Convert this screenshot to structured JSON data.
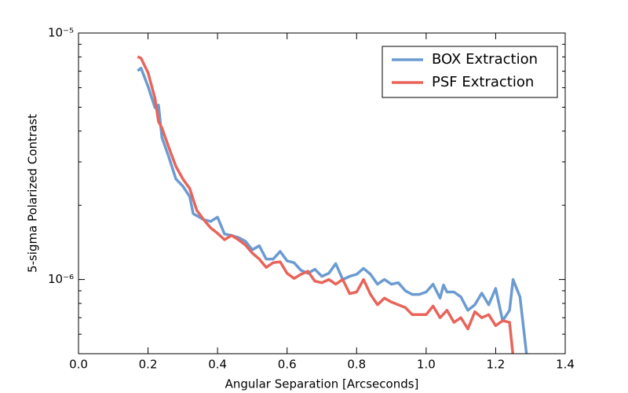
{
  "chart_data": {
    "type": "line",
    "xlabel": "Angular Separation [Arcseconds]",
    "ylabel": "5-sigma Polarized Contrast",
    "xlim": [
      0,
      1.4
    ],
    "xticks": [
      {
        "value": 0,
        "label": "0.0"
      },
      0.2,
      0.4,
      0.6,
      0.8,
      {
        "value": 1,
        "label": "1.0"
      },
      1.2,
      1.4
    ],
    "ylim": [
      5e-07,
      1e-05
    ],
    "yscale": "log",
    "yticks": [
      {
        "value": 1e-06,
        "label": "10⁻⁶"
      },
      {
        "value": 1e-05,
        "label": "10⁻⁵"
      }
    ],
    "yminorticks": [
      6e-07,
      7e-07,
      8e-07,
      9e-07,
      2e-06,
      3e-06,
      4e-06,
      5e-06,
      6e-06,
      7e-06,
      8e-06,
      9e-06
    ],
    "legend": "upper right",
    "series": [
      {
        "name": "BOX Extraction",
        "color": "#6b9bd1",
        "x": [
          0.17,
          0.18,
          0.2,
          0.22,
          0.23,
          0.24,
          0.26,
          0.28,
          0.3,
          0.32,
          0.33,
          0.36,
          0.38,
          0.4,
          0.42,
          0.44,
          0.46,
          0.48,
          0.5,
          0.52,
          0.54,
          0.56,
          0.58,
          0.6,
          0.62,
          0.64,
          0.66,
          0.68,
          0.7,
          0.72,
          0.74,
          0.76,
          0.78,
          0.8,
          0.82,
          0.84,
          0.86,
          0.88,
          0.9,
          0.92,
          0.94,
          0.96,
          0.98,
          1.0,
          1.02,
          1.04,
          1.05,
          1.06,
          1.08,
          1.1,
          1.12,
          1.14,
          1.16,
          1.18,
          1.2,
          1.22,
          1.24,
          1.25,
          1.27,
          1.29
        ],
        "values": [
          7.03e-06,
          7.2e-06,
          6.07e-06,
          4.98e-06,
          5.1e-06,
          3.77e-06,
          3.14e-06,
          2.56e-06,
          2.39e-06,
          2.17e-06,
          1.85e-06,
          1.75e-06,
          1.72e-06,
          1.79e-06,
          1.53e-06,
          1.51e-06,
          1.48e-06,
          1.43e-06,
          1.32e-06,
          1.37e-06,
          1.21e-06,
          1.21e-06,
          1.3e-06,
          1.19e-06,
          1.17e-06,
          1.09e-06,
          1.06e-06,
          1.1e-06,
          1.03e-06,
          1.06e-06,
          1.16e-06,
          1e-06,
          1.03e-06,
          1.05e-06,
          1.11e-06,
          1.05e-06,
          9.57e-07,
          1e-06,
          9.57e-07,
          9.7e-07,
          9e-07,
          8.7e-07,
          8.7e-07,
          8.9e-07,
          9.57e-07,
          8.4e-07,
          9.5e-07,
          8.9e-07,
          8.9e-07,
          8.5e-07,
          7.5e-07,
          7.9e-07,
          8.8e-07,
          7.9e-07,
          9.2e-07,
          6.8e-07,
          7.5e-07,
          1e-06,
          8.5e-07,
          4.8e-07
        ]
      },
      {
        "name": "PSF Extraction",
        "color": "#e8645a",
        "x": [
          0.17,
          0.18,
          0.2,
          0.22,
          0.23,
          0.24,
          0.26,
          0.28,
          0.3,
          0.32,
          0.34,
          0.36,
          0.38,
          0.4,
          0.42,
          0.44,
          0.46,
          0.48,
          0.5,
          0.52,
          0.54,
          0.56,
          0.58,
          0.6,
          0.62,
          0.64,
          0.66,
          0.68,
          0.7,
          0.72,
          0.74,
          0.76,
          0.78,
          0.8,
          0.82,
          0.84,
          0.86,
          0.88,
          0.9,
          0.92,
          0.94,
          0.96,
          0.98,
          1.0,
          1.02,
          1.04,
          1.06,
          1.08,
          1.1,
          1.12,
          1.14,
          1.16,
          1.18,
          1.2,
          1.22,
          1.24,
          1.25
        ],
        "values": [
          8.02e-06,
          7.9e-06,
          6.9e-06,
          5.44e-06,
          4.37e-06,
          4.12e-06,
          3.43e-06,
          2.88e-06,
          2.56e-06,
          2.34e-06,
          1.91e-06,
          1.75e-06,
          1.62e-06,
          1.54e-06,
          1.45e-06,
          1.51e-06,
          1.45e-06,
          1.38e-06,
          1.28e-06,
          1.21e-06,
          1.12e-06,
          1.17e-06,
          1.18e-06,
          1.06e-06,
          1.01e-06,
          1.05e-06,
          1.08e-06,
          9.85e-07,
          9.7e-07,
          1e-06,
          9.57e-07,
          1e-06,
          8.76e-07,
          8.9e-07,
          1e-06,
          8.7e-07,
          7.9e-07,
          8.4e-07,
          8.1e-07,
          7.9e-07,
          7.7e-07,
          7.2e-07,
          7.2e-07,
          7.2e-07,
          7.8e-07,
          7e-07,
          7.5e-07,
          6.7e-07,
          7e-07,
          6.3e-07,
          7.4e-07,
          7e-07,
          7.2e-07,
          6.5e-07,
          6.8e-07,
          6.7e-07,
          4.9e-07
        ]
      }
    ]
  }
}
